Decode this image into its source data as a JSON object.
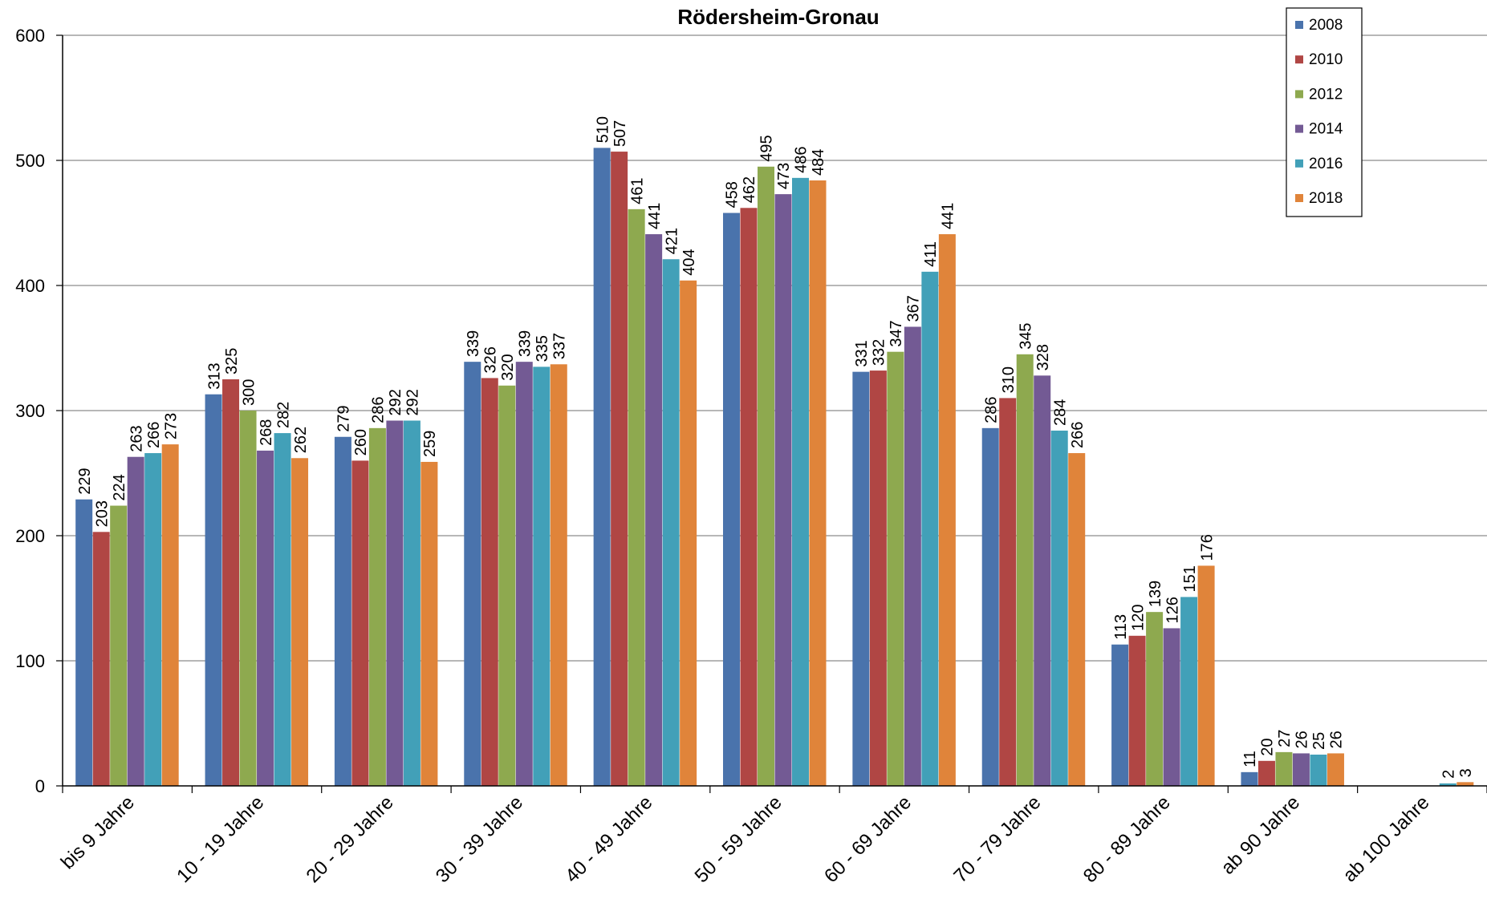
{
  "chart_data": {
    "type": "bar",
    "title": "Rödersheim-Gronau",
    "xlabel": "",
    "ylabel": "",
    "ylim": [
      0,
      600
    ],
    "yticks": [
      0,
      100,
      200,
      300,
      400,
      500,
      600
    ],
    "grid": true,
    "legend_position": "top-right",
    "categories": [
      "bis 9 Jahre",
      "10 - 19 Jahre",
      "20 - 29 Jahre",
      "30 - 39 Jahre",
      "40 - 49 Jahre",
      "50 - 59 Jahre",
      "60 - 69 Jahre",
      "70 - 79 Jahre",
      "80 - 89 Jahre",
      "ab 90 Jahre",
      "ab 100 Jahre"
    ],
    "series": [
      {
        "name": "2008",
        "color": "#4a73ac",
        "values": [
          229,
          313,
          279,
          339,
          510,
          458,
          331,
          286,
          113,
          11,
          null
        ]
      },
      {
        "name": "2010",
        "color": "#b04644",
        "values": [
          203,
          325,
          260,
          326,
          507,
          462,
          332,
          310,
          120,
          20,
          null
        ]
      },
      {
        "name": "2012",
        "color": "#8ea94f",
        "values": [
          224,
          300,
          286,
          320,
          461,
          495,
          347,
          345,
          139,
          27,
          null
        ]
      },
      {
        "name": "2014",
        "color": "#735a94",
        "values": [
          263,
          268,
          292,
          339,
          441,
          473,
          367,
          328,
          126,
          26,
          null
        ]
      },
      {
        "name": "2016",
        "color": "#42a0b8",
        "values": [
          266,
          282,
          292,
          335,
          421,
          486,
          411,
          284,
          151,
          25,
          2
        ]
      },
      {
        "name": "2018",
        "color": "#e0843a",
        "values": [
          273,
          262,
          259,
          337,
          404,
          484,
          441,
          266,
          176,
          26,
          3
        ]
      }
    ]
  }
}
